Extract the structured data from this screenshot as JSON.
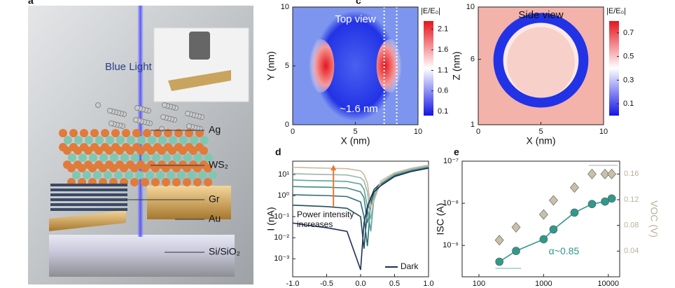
{
  "panel_labels": [
    "a",
    "c",
    "d",
    "e"
  ],
  "illustration": {
    "beam_label": "Blue Light",
    "layer_labels": [
      "Ag",
      "WS₂",
      "Gr",
      "Au",
      "Si/SiO₂"
    ]
  },
  "chart_data": [
    {
      "type": "heatmap",
      "xlabel": "X (nm)",
      "ylabel": "Y (nm)",
      "xlim": [
        0,
        10
      ],
      "ylim": [
        0,
        10
      ],
      "xticks": [
        0,
        5,
        10
      ],
      "yticks": [
        0,
        5,
        10
      ],
      "annotations": [
        "Top view",
        "~1.6 nm"
      ],
      "colormap": [
        "#1414e6",
        "#ffffff",
        "#e6141c"
      ],
      "colorbar": {
        "label": "|E/E₀|",
        "lim": [
          0,
          2.3
        ],
        "ticks": [
          0.1,
          0.6,
          1.1,
          1.6,
          2.1
        ]
      }
    },
    {
      "type": "heatmap",
      "xlabel": "X (nm)",
      "ylabel": "Z (nm)",
      "xlim": [
        0,
        10
      ],
      "ylim": [
        1,
        10
      ],
      "xticks": [
        0,
        5,
        10
      ],
      "yticks": [
        1,
        6,
        10
      ],
      "annotations": [
        "Side view"
      ],
      "colormap": [
        "#1414e6",
        "#ffffff",
        "#e6141c"
      ],
      "colorbar": {
        "label": "|E/E₀|",
        "lim": [
          0,
          0.8
        ],
        "ticks": [
          0.1,
          0.3,
          0.5,
          0.7
        ]
      }
    },
    {
      "type": "line",
      "ylabel": "I (nA)",
      "log_y": true,
      "xlim": [
        -1,
        1
      ],
      "ylim": [
        0.00014,
        43
      ],
      "xticks": [
        {
          "value": -1,
          "label": "-1.0"
        },
        {
          "value": -0.5,
          "label": "-0.5"
        },
        {
          "value": 0,
          "label": "0.0"
        },
        {
          "value": 0.5,
          "label": "0.5"
        },
        {
          "value": 1,
          "label": "1.0"
        }
      ],
      "yticks": [
        {
          "value": 10,
          "label": "10¹"
        },
        {
          "value": 1,
          "label": "10⁰"
        },
        {
          "value": 0.1,
          "label": "10⁻¹"
        },
        {
          "value": 0.01,
          "label": "10⁻²"
        },
        {
          "value": 0.001,
          "label": "10⁻³"
        }
      ],
      "annotation_lines": [
        "Power intensity",
        "increases"
      ],
      "arrow_color": "#e8772e",
      "x": [
        -1,
        -0.8,
        -0.5,
        -0.2,
        0,
        0.05,
        0.1,
        0.15,
        0.2,
        0.3,
        0.5,
        0.75,
        1.0
      ],
      "series": [
        {
          "color": "#1f4e5a",
          "values": [
            0.35,
            0.33,
            0.3,
            0.25,
            0.1,
            0.003,
            0.2,
            0.8,
            2,
            4,
            9,
            15,
            21
          ]
        },
        {
          "color": "#2f6f73",
          "values": [
            1.1,
            1.05,
            1,
            0.9,
            0.5,
            0.1,
            0.004,
            0.5,
            1.5,
            3.5,
            9,
            15,
            22
          ]
        },
        {
          "color": "#3e8a86",
          "values": [
            2.7,
            2.6,
            2.5,
            2.3,
            1.5,
            0.8,
            0.05,
            0.3,
            1.5,
            4,
            10,
            16,
            23
          ]
        },
        {
          "color": "#5fa39a",
          "values": [
            5.5,
            5.2,
            5,
            4.7,
            3.5,
            2,
            0.3,
            0.02,
            1,
            4,
            10,
            17,
            24
          ]
        },
        {
          "color": "#9bb8a8",
          "values": [
            11,
            10.5,
            10,
            9.5,
            7,
            5,
            1.5,
            0.08,
            0.8,
            4,
            11,
            18,
            26
          ]
        },
        {
          "color": "#c9b99a",
          "values": [
            22,
            21,
            20,
            19,
            15,
            10,
            4,
            0.3,
            0.6,
            5,
            12,
            20,
            28
          ]
        },
        {
          "name": "Dark",
          "color": "#1f2f5a",
          "values": [
            0.05,
            0.04,
            0.03,
            0.02,
            0.0003,
            0.05,
            0.3,
            0.8,
            1.5,
            3,
            8,
            14,
            20
          ]
        }
      ]
    },
    {
      "type": "scatter",
      "ylabel": "ISC (A)",
      "y2label": "VOC (V)",
      "log_x": true,
      "log_y": true,
      "xlim": [
        55,
        15000
      ],
      "ylim": [
        1.8e-10,
        1e-07
      ],
      "y2lim": [
        0,
        0.18
      ],
      "xticks": [
        100,
        1000,
        10000
      ],
      "yticks": [
        {
          "value": 1e-07,
          "label": "10⁻⁷"
        },
        {
          "value": 1e-08,
          "label": "10⁻⁸"
        },
        {
          "value": 1e-09,
          "label": "10⁻⁹"
        }
      ],
      "y2ticks": [
        0.04,
        0.08,
        0.12,
        0.16
      ],
      "annotation": "α~0.85",
      "x": [
        207,
        375,
        1000,
        1420,
        3000,
        5600,
        8900,
        11300
      ],
      "series": [
        {
          "color": "#2f9a8c",
          "marker": "circle",
          "values": [
            4.1e-10,
            7.4e-10,
            1.4e-09,
            2.4e-09,
            6e-09,
            9.6e-09,
            1.1e-08,
            1.3e-08
          ]
        },
        {
          "color": "#c8c0a8",
          "marker": "diamond",
          "axis": "y2",
          "values": [
            0.057,
            0.077,
            0.097,
            0.119,
            0.139,
            0.16,
            0.16,
            0.16
          ]
        }
      ]
    }
  ]
}
